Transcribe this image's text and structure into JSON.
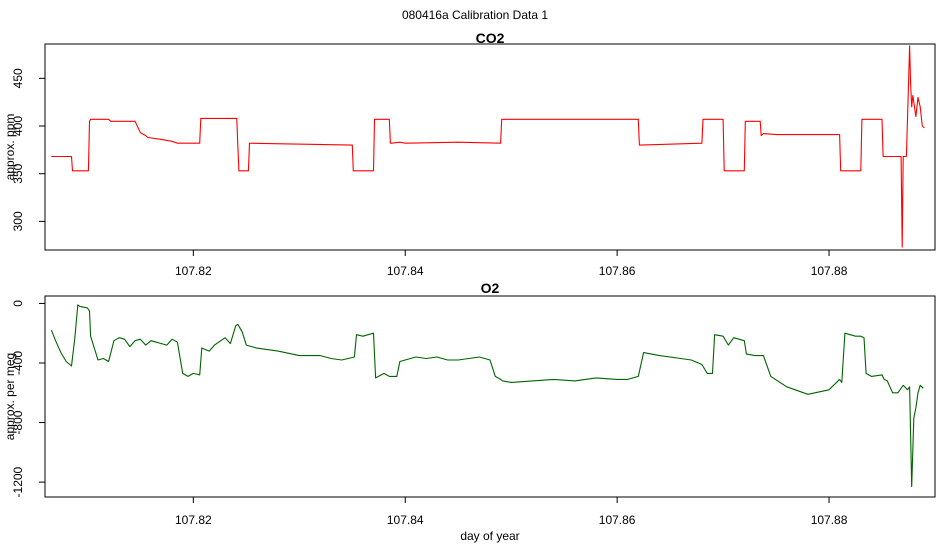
{
  "figure": {
    "title": "080416a   Calibration Data 1"
  },
  "chart_data": [
    {
      "type": "line",
      "title": "CO2",
      "xlabel": "",
      "ylabel": "approx. ppm",
      "xlim": [
        107.806,
        107.89
      ],
      "ylim": [
        270,
        486
      ],
      "xticks": [
        107.82,
        107.84,
        107.86,
        107.88
      ],
      "xtick_labels": [
        "107.82",
        "107.84",
        "107.86",
        "107.88"
      ],
      "yticks": [
        300,
        350,
        400,
        450
      ],
      "ytick_labels": [
        "300",
        "350",
        "400",
        "450"
      ],
      "grid": false,
      "series": [
        {
          "color": "#ff0000",
          "x": [
            107.8066,
            107.8085,
            107.8086,
            107.8101,
            107.8102,
            107.8103,
            107.812,
            107.8122,
            107.8125,
            107.8135,
            107.8145,
            107.815,
            107.8155,
            107.8157,
            107.817,
            107.818,
            107.8185,
            107.8186,
            107.8192,
            107.8206,
            107.8207,
            107.8208,
            107.8215,
            107.822,
            107.8241,
            107.8242,
            107.8243,
            107.8252,
            107.8253,
            107.8254,
            107.835,
            107.8351,
            107.8352,
            107.837,
            107.8371,
            107.8372,
            107.8385,
            107.8386,
            107.8387,
            107.8395,
            107.84,
            107.845,
            107.849,
            107.8491,
            107.8492,
            107.862,
            107.8621,
            107.8622,
            107.868,
            107.8681,
            107.8682,
            107.87,
            107.8701,
            107.8702,
            107.872,
            107.8721,
            107.8722,
            107.8735,
            107.8736,
            107.8738,
            107.875,
            107.878,
            107.881,
            107.8811,
            107.8812,
            107.883,
            107.8831,
            107.8832,
            107.885,
            107.8851,
            107.8852,
            107.8868,
            107.8869,
            107.887,
            107.8871,
            107.8873,
            107.8876,
            107.8877,
            107.8878,
            107.8879,
            107.888,
            107.8882,
            107.8884,
            107.8886,
            107.8888,
            107.889
          ],
          "y": [
            368,
            368,
            353,
            353,
            405,
            407,
            407,
            405,
            405,
            405,
            405,
            393,
            390,
            388,
            386,
            384,
            382,
            382,
            382,
            382,
            408,
            408,
            408,
            408,
            408,
            380,
            353,
            353,
            382,
            382,
            380,
            353,
            353,
            353,
            407,
            407,
            407,
            382,
            382,
            383,
            382,
            383,
            382,
            407,
            407,
            407,
            380,
            380,
            382,
            407,
            407,
            407,
            353,
            353,
            353,
            405,
            405,
            405,
            390,
            392,
            391,
            391,
            391,
            353,
            353,
            353,
            407,
            407,
            407,
            368,
            368,
            368,
            273,
            368,
            368,
            368,
            484,
            445,
            420,
            432,
            425,
            410,
            430,
            420,
            400,
            398
          ]
        }
      ]
    },
    {
      "type": "line",
      "title": "O2",
      "xlabel": "day of year",
      "ylabel": "approx. per meg",
      "xlim": [
        107.806,
        107.89
      ],
      "ylim": [
        -1300,
        50
      ],
      "xticks": [
        107.82,
        107.84,
        107.86,
        107.88
      ],
      "xtick_labels": [
        "107.82",
        "107.84",
        "107.86",
        "107.88"
      ],
      "yticks": [
        -1200,
        -800,
        -400,
        0
      ],
      "ytick_labels": [
        "-1200",
        "-800",
        "-400",
        "0"
      ],
      "grid": false,
      "series": [
        {
          "color": "#006400",
          "x": [
            107.8066,
            107.807,
            107.8075,
            107.808,
            107.8085,
            107.8088,
            107.8091,
            107.8093,
            107.81,
            107.8102,
            107.8103,
            107.811,
            107.8115,
            107.812,
            107.8125,
            107.813,
            107.8135,
            107.814,
            107.8145,
            107.815,
            107.8155,
            107.816,
            107.8165,
            107.817,
            107.8175,
            107.818,
            107.8185,
            107.819,
            107.8195,
            107.82,
            107.8206,
            107.8208,
            107.8215,
            107.822,
            107.823,
            107.8235,
            107.824,
            107.8242,
            107.8246,
            107.825,
            107.826,
            107.828,
            107.83,
            107.832,
            107.833,
            107.834,
            107.8352,
            107.8354,
            107.836,
            107.837,
            107.8372,
            107.838,
            107.8385,
            107.8392,
            107.8395,
            107.84,
            107.841,
            107.842,
            107.843,
            107.844,
            107.845,
            107.846,
            107.847,
            107.848,
            107.8485,
            107.849,
            107.8492,
            107.85,
            107.852,
            107.854,
            107.856,
            107.858,
            107.86,
            107.861,
            107.862,
            107.8625,
            107.864,
            107.866,
            107.867,
            107.868,
            107.8685,
            107.869,
            107.8692,
            107.87,
            107.8705,
            107.871,
            107.872,
            107.8722,
            107.873,
            107.8738,
            107.8745,
            107.876,
            107.878,
            107.88,
            107.881,
            107.8812,
            107.8815,
            107.8825,
            107.883,
            107.8833,
            107.8835,
            107.884,
            107.885,
            107.8852,
            107.8855,
            107.886,
            107.8865,
            107.887,
            107.8874,
            107.8876,
            107.8878,
            107.888,
            107.8882,
            107.8884,
            107.8886,
            107.8889
          ],
          "y": [
            -180,
            -250,
            -330,
            -390,
            -420,
            -240,
            -10,
            -20,
            -30,
            -50,
            -220,
            -380,
            -370,
            -390,
            -250,
            -230,
            -240,
            -290,
            -250,
            -240,
            -280,
            -250,
            -260,
            -270,
            -280,
            -240,
            -260,
            -470,
            -490,
            -470,
            -480,
            -300,
            -320,
            -280,
            -230,
            -270,
            -150,
            -140,
            -190,
            -280,
            -300,
            -320,
            -350,
            -350,
            -370,
            -380,
            -360,
            -210,
            -220,
            -200,
            -500,
            -470,
            -490,
            -490,
            -390,
            -380,
            -360,
            -370,
            -360,
            -380,
            -380,
            -370,
            -360,
            -380,
            -490,
            -510,
            -520,
            -530,
            -520,
            -510,
            -520,
            -500,
            -510,
            -510,
            -490,
            -330,
            -350,
            -370,
            -380,
            -410,
            -470,
            -470,
            -210,
            -220,
            -280,
            -230,
            -250,
            -340,
            -350,
            -350,
            -490,
            -560,
            -610,
            -580,
            -510,
            -530,
            -200,
            -220,
            -220,
            -230,
            -470,
            -490,
            -480,
            -510,
            -520,
            -600,
            -600,
            -550,
            -580,
            -560,
            -1230,
            -770,
            -700,
            -600,
            -550,
            -570
          ]
        }
      ]
    }
  ]
}
